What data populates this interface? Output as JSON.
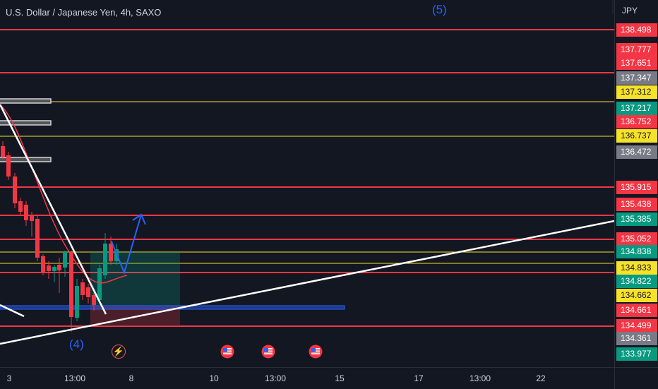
{
  "header": {
    "title": "U.S. Dollar / Japanese Yen, 4h, SAXO"
  },
  "annotations": {
    "wave5": "(5)",
    "wave4": "(4)"
  },
  "price_axis": {
    "currency": "JPY",
    "labels": [
      {
        "price": "138.498",
        "kind": "red"
      },
      {
        "price": "137.777",
        "kind": "red"
      },
      {
        "price": "137.651",
        "kind": "red"
      },
      {
        "price": "137.347",
        "kind": "gray"
      },
      {
        "price": "137.312",
        "kind": "yellow"
      },
      {
        "price": "137.217",
        "kind": "green"
      },
      {
        "price": "136.752",
        "kind": "red"
      },
      {
        "price": "136.737",
        "kind": "yellow"
      },
      {
        "price": "136.472",
        "kind": "gray"
      },
      {
        "price": "135.915",
        "kind": "red"
      },
      {
        "price": "135.438",
        "kind": "red"
      },
      {
        "price": "135.385",
        "kind": "green"
      },
      {
        "price": "135.052",
        "kind": "red"
      },
      {
        "price": "134.838",
        "kind": "green"
      },
      {
        "price": "134.833",
        "kind": "yellow"
      },
      {
        "price": "134.822",
        "kind": "green"
      },
      {
        "price": "134.662",
        "kind": "yellow"
      },
      {
        "price": "134.661",
        "kind": "red"
      },
      {
        "price": "134.499",
        "kind": "red"
      },
      {
        "price": "134.361",
        "kind": "gray"
      },
      {
        "price": "133.977",
        "kind": "green"
      }
    ]
  },
  "time_axis": {
    "labels": [
      "3",
      "13:00",
      "8",
      "10",
      "13:00",
      "15",
      "17",
      "13:00",
      "22"
    ]
  },
  "colors": {
    "red": "#f23645",
    "green": "#089981",
    "yellow": "#f7e22a",
    "gray": "#787b86",
    "bg": "#131722",
    "wave": "#2962ff"
  },
  "events": [
    "lightning-icon",
    "us-flag-icon",
    "us-flag-icon",
    "us-flag-icon"
  ]
}
